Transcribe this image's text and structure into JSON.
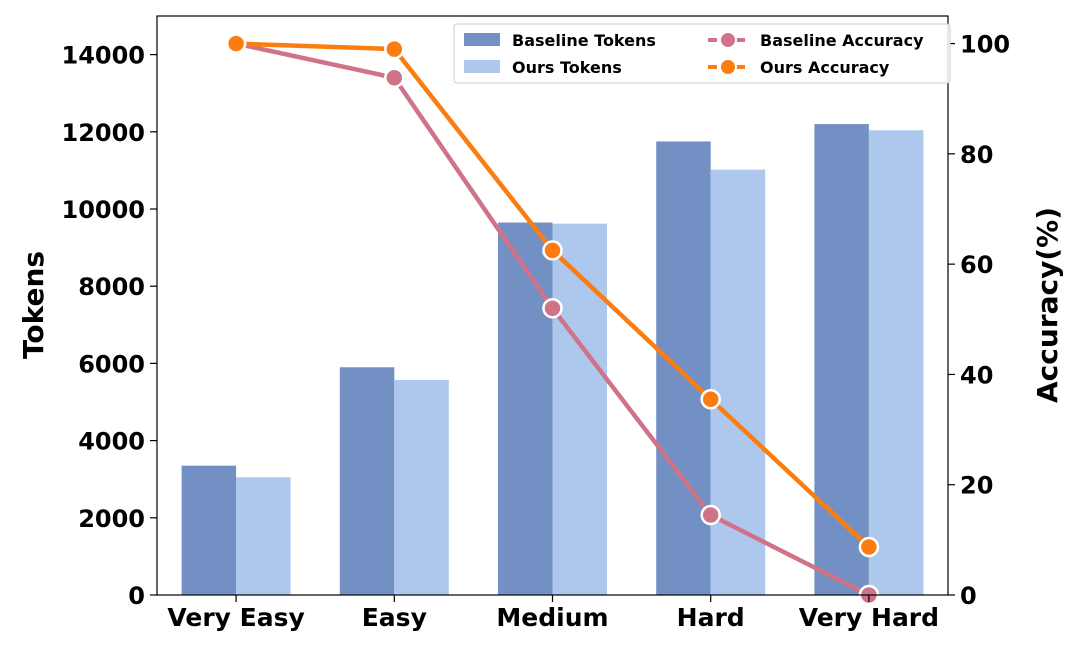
{
  "chart_data": {
    "type": "bar",
    "categories": [
      "Very Easy",
      "Easy",
      "Medium",
      "Hard",
      "Very Hard"
    ],
    "bar_series": [
      {
        "name": "Baseline Tokens",
        "color": "#7390c4",
        "values": [
          3350,
          5900,
          9650,
          11750,
          12200
        ]
      },
      {
        "name": "Ours Tokens",
        "color": "#adc8ec",
        "values": [
          3050,
          5570,
          9620,
          11020,
          12040
        ]
      }
    ],
    "line_series": [
      {
        "name": "Baseline Accuracy",
        "color": "#cf7488",
        "values": [
          100,
          93.8,
          52,
          14.5,
          0
        ]
      },
      {
        "name": "Ours Accuracy",
        "color": "#fb7d10",
        "values": [
          100,
          99,
          62.5,
          35.5,
          8.7
        ]
      }
    ],
    "ylabel": "Tokens",
    "y2label": "Accuracy(%)",
    "ylim": [
      0,
      15000
    ],
    "y2lim": [
      0,
      105
    ],
    "yticks": [
      "0",
      "2000",
      "4000",
      "6000",
      "8000",
      "10000",
      "12000",
      "14000"
    ],
    "y2ticks": [
      "0",
      "20",
      "40",
      "60",
      "80",
      "100"
    ],
    "legend_position": "top-right",
    "grid": false
  }
}
